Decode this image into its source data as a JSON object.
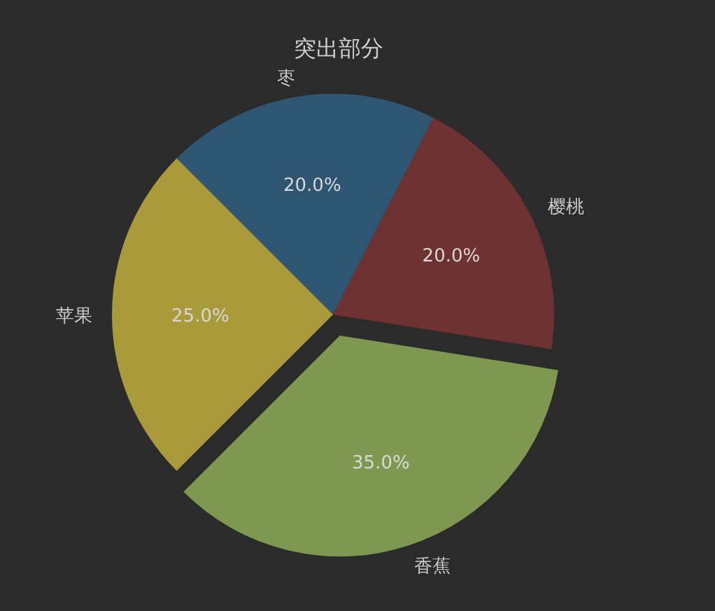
{
  "chart_data": {
    "type": "pie",
    "title": "突出部分",
    "categories": [
      "枣",
      "樱桃",
      "香蕉",
      "苹果"
    ],
    "values": [
      20,
      20,
      35,
      25
    ],
    "colors": [
      "#2e5571",
      "#6f3232",
      "#7f9850",
      "#a99a3a"
    ],
    "value_labels": [
      "20.0%",
      "20.0%",
      "35.0%",
      "25.0%"
    ]
  }
}
